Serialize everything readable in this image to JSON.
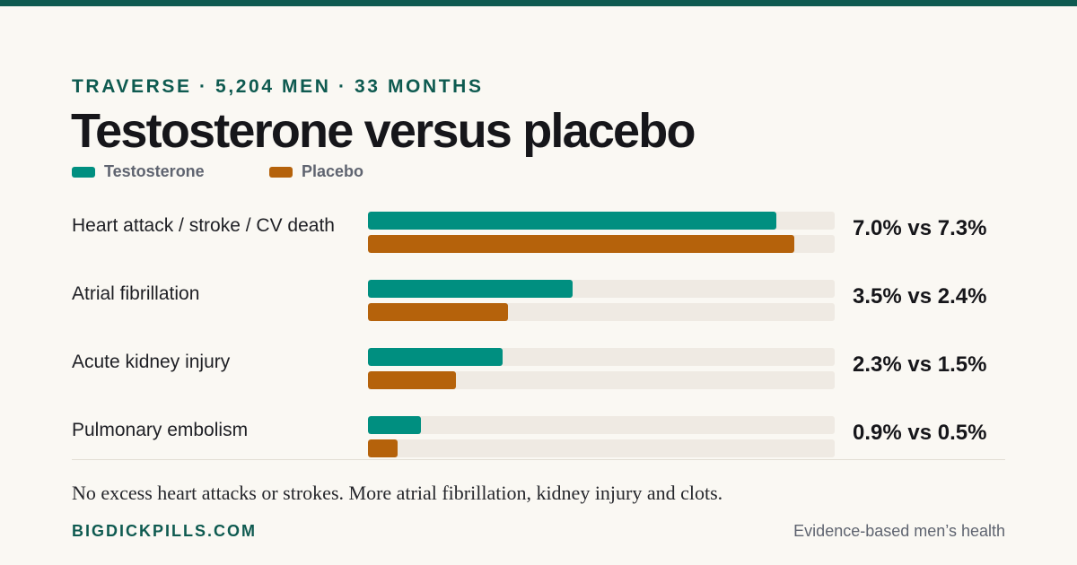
{
  "header": {
    "kicker": "TRAVERSE · 5,204 MEN · 33 MONTHS",
    "title": "Testosterone versus placebo"
  },
  "colors": {
    "testosterone": "#008f80",
    "placebo": "#b5620b",
    "accent": "#0e5a50"
  },
  "chart_data": {
    "type": "bar",
    "orientation": "horizontal",
    "xlim": [
      0,
      8
    ],
    "grid": false,
    "legend_position": "top-left",
    "legend": [
      "Testosterone",
      "Placebo"
    ],
    "categories": [
      "Heart attack / stroke / CV death",
      "Atrial fibrillation",
      "Acute kidney injury",
      "Pulmonary embolism"
    ],
    "series": [
      {
        "name": "Testosterone",
        "values": [
          7.0,
          3.5,
          2.3,
          0.9
        ]
      },
      {
        "name": "Placebo",
        "values": [
          7.3,
          2.4,
          1.5,
          0.5
        ]
      }
    ],
    "value_labels": [
      "7.0% vs 7.3%",
      "3.5% vs 2.4%",
      "2.3% vs 1.5%",
      "0.9% vs 0.5%"
    ]
  },
  "footer": {
    "caption": "No excess heart attacks or strokes. More atrial fibrillation, kidney injury and clots.",
    "brand": "BIGDICKPILLS.COM",
    "tagline": "Evidence-based men’s health"
  }
}
